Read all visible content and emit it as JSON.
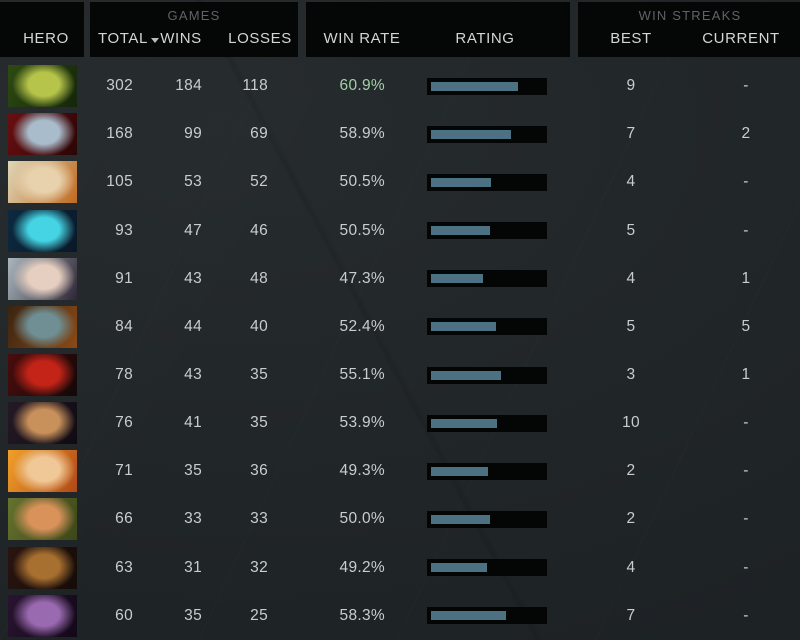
{
  "header": {
    "hero_label": "HERO",
    "games_group_label": "GAMES",
    "win_streaks_group_label": "WIN STREAKS",
    "total_label": "TOTAL",
    "wins_label": "WINS",
    "losses_label": "LOSSES",
    "win_rate_label": "WIN RATE",
    "rating_label": "RATING",
    "best_label": "BEST",
    "current_label": "CURRENT",
    "sort_icon": "chevron-down on TOTAL column"
  },
  "colors": {
    "background": "#212628",
    "panel_black": "#050707",
    "bar_track": "#040606",
    "bar_fill": "#4c7183",
    "row_text": "#c9cdce",
    "header_text": "#d4d6d6",
    "group_label_text": "#5d6366",
    "win_rate_green": "#a4d0a8"
  },
  "rows": [
    {
      "total": "302",
      "wins": "184",
      "losses": "118",
      "win_rate": "60.9%",
      "win_rate_color": "green",
      "rating_pct": 75,
      "best": "9",
      "current": "-",
      "portrait": [
        "#2e4a12",
        "#b6c44a",
        "#14260a"
      ]
    },
    {
      "total": "168",
      "wins": "99",
      "losses": "69",
      "win_rate": "58.9%",
      "rating_pct": 69,
      "best": "7",
      "current": "2",
      "portrait": [
        "#6b0f10",
        "#a8bccb",
        "#2a0506"
      ]
    },
    {
      "total": "105",
      "wins": "53",
      "losses": "52",
      "win_rate": "50.5%",
      "rating_pct": 52,
      "best": "4",
      "current": "-",
      "portrait": [
        "#ded6b8",
        "#e8d2ae",
        "#c06a20"
      ]
    },
    {
      "total": "93",
      "wins": "47",
      "losses": "46",
      "win_rate": "50.5%",
      "rating_pct": 51,
      "best": "5",
      "current": "-",
      "portrait": [
        "#0c2a40",
        "#45d4e4",
        "#0a1828"
      ]
    },
    {
      "total": "91",
      "wins": "43",
      "losses": "48",
      "win_rate": "47.3%",
      "rating_pct": 45,
      "best": "4",
      "current": "1",
      "portrait": [
        "#aab6bd",
        "#e6cfc0",
        "#2e2535"
      ]
    },
    {
      "total": "84",
      "wins": "44",
      "losses": "40",
      "win_rate": "52.4%",
      "rating_pct": 56,
      "best": "5",
      "current": "5",
      "portrait": [
        "#3a2410",
        "#6f8f94",
        "#8a4a16"
      ]
    },
    {
      "total": "78",
      "wins": "43",
      "losses": "35",
      "win_rate": "55.1%",
      "rating_pct": 60,
      "best": "3",
      "current": "1",
      "portrait": [
        "#4a0d0d",
        "#c42418",
        "#120808"
      ]
    },
    {
      "total": "76",
      "wins": "41",
      "losses": "35",
      "win_rate": "53.9%",
      "rating_pct": 57,
      "best": "10",
      "current": "-",
      "portrait": [
        "#241a26",
        "#c8905a",
        "#100a12"
      ]
    },
    {
      "total": "71",
      "wins": "35",
      "losses": "36",
      "win_rate": "49.3%",
      "rating_pct": 49,
      "best": "2",
      "current": "-",
      "portrait": [
        "#f0a028",
        "#f0c898",
        "#b04818"
      ]
    },
    {
      "total": "66",
      "wins": "33",
      "losses": "33",
      "win_rate": "50.0%",
      "rating_pct": 51,
      "best": "2",
      "current": "-",
      "portrait": [
        "#66722e",
        "#d8925a",
        "#3c4618"
      ]
    },
    {
      "total": "63",
      "wins": "31",
      "losses": "32",
      "win_rate": "49.2%",
      "rating_pct": 48,
      "best": "4",
      "current": "-",
      "portrait": [
        "#2a1410",
        "#a87030",
        "#140c08"
      ]
    },
    {
      "total": "60",
      "wins": "35",
      "losses": "25",
      "win_rate": "58.3%",
      "rating_pct": 65,
      "best": "7",
      "current": "-",
      "portrait": [
        "#2a1430",
        "#9a6ab0",
        "#120818"
      ]
    }
  ]
}
